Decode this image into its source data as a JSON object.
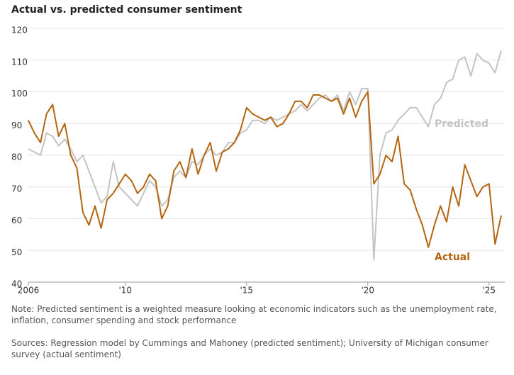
{
  "chart_data": {
    "type": "line",
    "title": "Actual vs. predicted consumer sentiment",
    "note": "Note: Predicted sentiment is a weighted measure looking at economic indicators such as the unemployment rate, inflation, consumer spending and stock performance",
    "source": "Sources: Regression model by Cummings and Mahoney (predicted sentiment); University of Michigan consumer survey (actual sentiment)",
    "x": [
      2006,
      2006.25,
      2006.5,
      2006.75,
      2007,
      2007.25,
      2007.5,
      2007.75,
      2008,
      2008.25,
      2008.5,
      2008.75,
      2009,
      2009.25,
      2009.5,
      2009.75,
      2010,
      2010.25,
      2010.5,
      2010.75,
      2011,
      2011.25,
      2011.5,
      2011.75,
      2012,
      2012.25,
      2012.5,
      2012.75,
      2013,
      2013.25,
      2013.5,
      2013.75,
      2014,
      2014.25,
      2014.5,
      2014.75,
      2015,
      2015.25,
      2015.5,
      2015.75,
      2016,
      2016.25,
      2016.5,
      2016.75,
      2017,
      2017.25,
      2017.5,
      2017.75,
      2018,
      2018.25,
      2018.5,
      2018.75,
      2019,
      2019.25,
      2019.5,
      2019.75,
      2020,
      2020.25,
      2020.5,
      2020.75,
      2021,
      2021.25,
      2021.5,
      2021.75,
      2022,
      2022.25,
      2022.5,
      2022.75,
      2023,
      2023.25,
      2023.5,
      2023.75,
      2024,
      2024.25,
      2024.5,
      2024.75,
      2025,
      2025.25,
      2025.5
    ],
    "series": [
      {
        "name": "Predicted",
        "color": "#c4c4c4",
        "values": [
          82,
          81,
          80,
          87,
          86,
          83,
          85,
          82,
          78,
          80,
          75,
          70,
          65,
          67,
          78,
          70,
          68,
          66,
          64,
          68,
          72,
          70,
          64,
          66,
          73,
          75,
          73,
          78,
          77,
          80,
          82,
          80,
          81,
          84,
          84,
          87,
          88,
          91,
          91,
          90,
          92,
          91,
          92,
          93,
          94,
          96,
          94,
          96,
          98,
          99,
          97,
          99,
          94,
          100,
          96,
          101,
          101,
          47,
          80,
          87,
          88,
          91,
          93,
          95,
          95,
          92,
          89,
          96,
          98,
          103,
          104,
          110,
          111,
          105,
          112,
          110,
          109,
          106,
          113
        ]
      },
      {
        "name": "Actual",
        "color": "#b5650f",
        "values": [
          91,
          87,
          84,
          93,
          96,
          86,
          90,
          80,
          76,
          62,
          58,
          64,
          57,
          66,
          68,
          71,
          74,
          72,
          68,
          70,
          74,
          72,
          60,
          64,
          75,
          78,
          73,
          82,
          74,
          80,
          84,
          75,
          81,
          82,
          84,
          88,
          95,
          93,
          92,
          91,
          92,
          89,
          90,
          93,
          97,
          97,
          95,
          99,
          99,
          98,
          97,
          98,
          93,
          98,
          92,
          97,
          100,
          71,
          74,
          80,
          78,
          86,
          71,
          69,
          63,
          58,
          51,
          58,
          64,
          59,
          70,
          64,
          77,
          72,
          67,
          70,
          71,
          52,
          61
        ]
      }
    ],
    "xlim": [
      2006,
      2025.65
    ],
    "xticks": [
      2006,
      {
        "value": 2010,
        "label": "'10"
      },
      {
        "value": 2015,
        "label": "'15"
      },
      {
        "value": 2020,
        "label": "'20"
      },
      {
        "value": 2025,
        "label": "'25"
      }
    ],
    "ylim": [
      40,
      120
    ],
    "yticks": [
      40,
      50,
      60,
      70,
      80,
      90,
      100,
      110,
      120
    ],
    "grid": true
  }
}
